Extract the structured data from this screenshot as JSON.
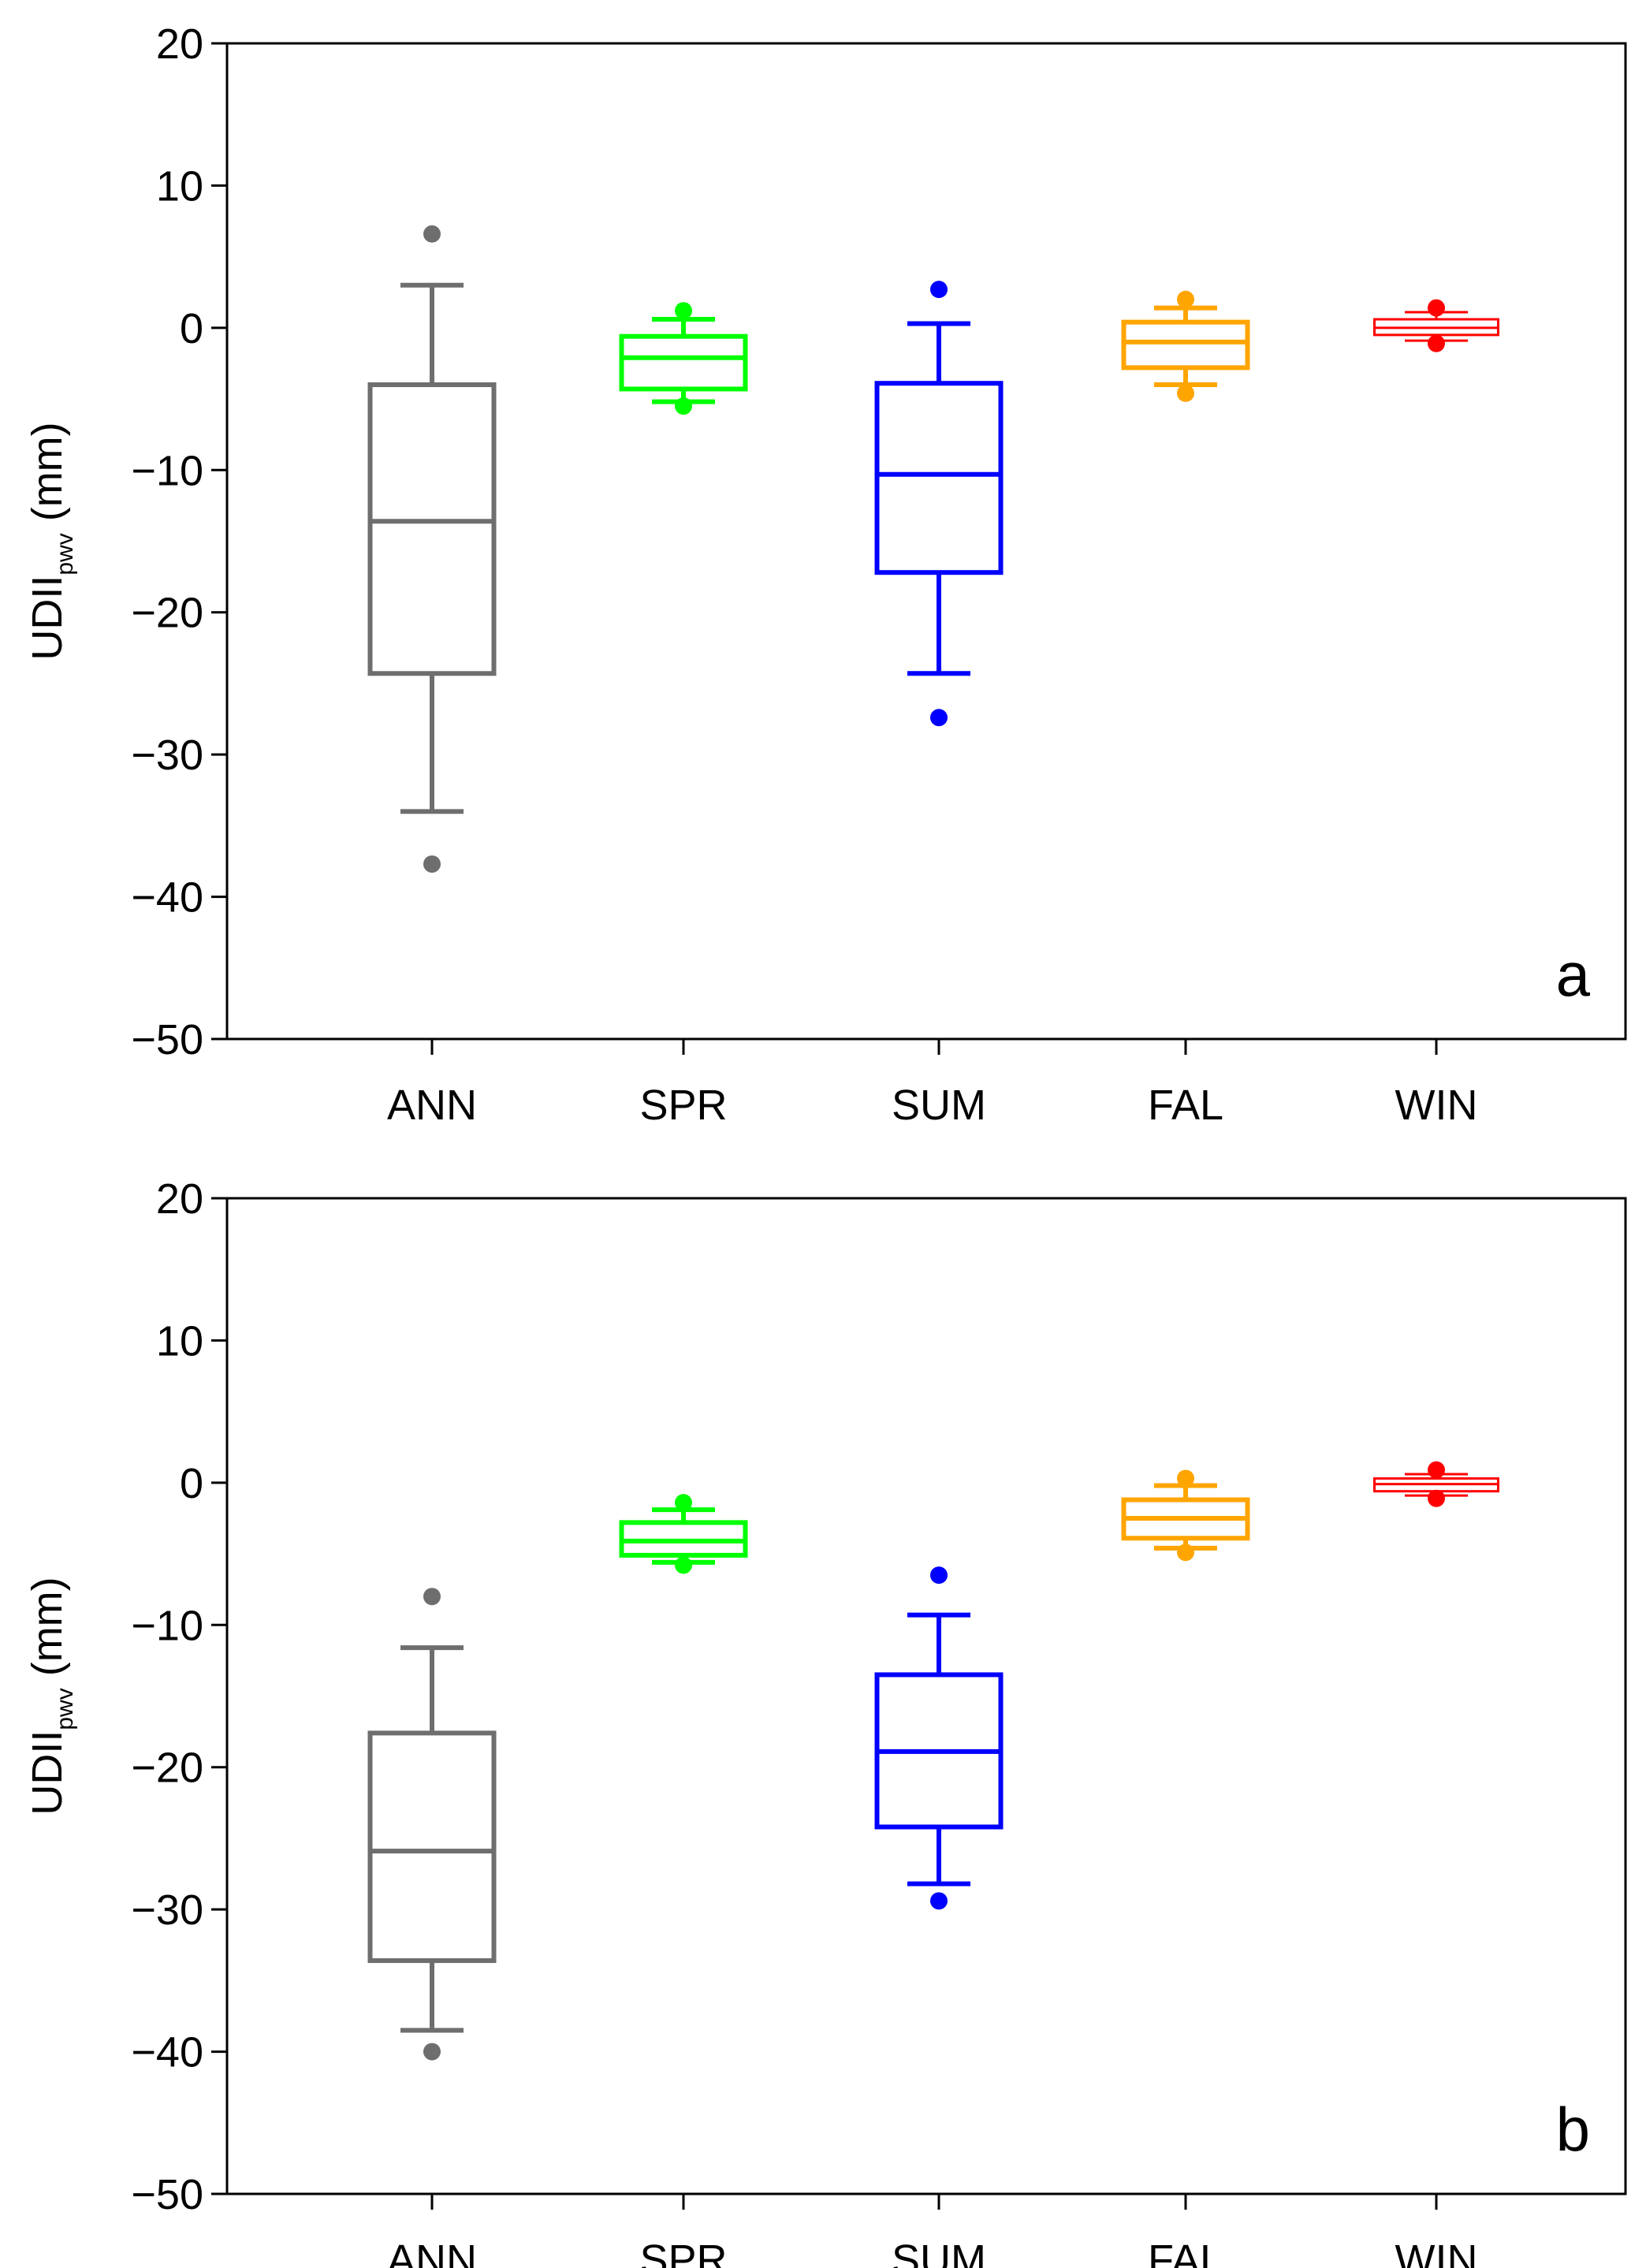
{
  "chart_data": [
    {
      "type": "box",
      "panel_label": "a",
      "ylabel": {
        "main": "UDII",
        "sub": "pwv",
        "unit": " (mm)"
      },
      "ylim": [
        -50,
        20
      ],
      "yticks": [
        20,
        10,
        0,
        -10,
        -20,
        -30,
        -40,
        -50
      ],
      "yticks_display": [
        "20",
        "10",
        "0",
        "−10",
        "−20",
        "−30",
        "−40",
        "−50"
      ],
      "categories": [
        "ANN",
        "SPR",
        "SUM",
        "FAL",
        "WIN"
      ],
      "boxes": [
        {
          "name": "ANN",
          "color": "#6e6e6e",
          "whisker_low": -34,
          "q1": -24.3,
          "median": -13.6,
          "q3": -4,
          "whisker_high": 3,
          "outliers": [
            6.6,
            -37.7
          ]
        },
        {
          "name": "SPR",
          "color": "#00ff00",
          "whisker_low": -5.2,
          "q1": -4.3,
          "median": -2.1,
          "q3": -0.6,
          "whisker_high": 0.6,
          "outliers": [
            1.2,
            -5.5
          ]
        },
        {
          "name": "SUM",
          "color": "#0000ff",
          "whisker_low": -24.3,
          "q1": -17.2,
          "median": -10.3,
          "q3": -3.9,
          "whisker_high": 0.3,
          "outliers": [
            2.7,
            -27.4
          ]
        },
        {
          "name": "FAL",
          "color": "#ffa500",
          "whisker_low": -4,
          "q1": -2.8,
          "median": -1,
          "q3": 0.4,
          "whisker_high": 1.4,
          "outliers": [
            2.0,
            -4.6
          ]
        },
        {
          "name": "WIN",
          "color": "#ff0000",
          "whisker_low": -0.9,
          "q1": -0.5,
          "median": 0,
          "q3": 0.6,
          "whisker_high": 1.1,
          "outliers": [
            1.4,
            -1.1
          ]
        }
      ]
    },
    {
      "type": "box",
      "panel_label": "b",
      "ylabel": {
        "main": "UDII",
        "sub": "pwv",
        "unit": " (mm)"
      },
      "ylim": [
        -50,
        20
      ],
      "yticks": [
        20,
        10,
        0,
        -10,
        -20,
        -30,
        -40,
        -50
      ],
      "yticks_display": [
        "20",
        "10",
        "0",
        "−10",
        "−20",
        "−30",
        "−40",
        "−50"
      ],
      "categories": [
        "ANN",
        "SPR",
        "SUM",
        "FAL",
        "WIN"
      ],
      "boxes": [
        {
          "name": "ANN",
          "color": "#6e6e6e",
          "whisker_low": -38.5,
          "q1": -33.6,
          "median": -25.9,
          "q3": -17.6,
          "whisker_high": -11.6,
          "outliers": [
            -8,
            -40
          ]
        },
        {
          "name": "SPR",
          "color": "#00ff00",
          "whisker_low": -5.6,
          "q1": -5.1,
          "median": -4.1,
          "q3": -2.8,
          "whisker_high": -1.9,
          "outliers": [
            -1.4,
            -5.8
          ]
        },
        {
          "name": "SUM",
          "color": "#0000ff",
          "whisker_low": -28.2,
          "q1": -24.2,
          "median": -18.9,
          "q3": -13.5,
          "whisker_high": -9.3,
          "outliers": [
            -6.5,
            -29.4
          ]
        },
        {
          "name": "FAL",
          "color": "#ffa500",
          "whisker_low": -4.6,
          "q1": -3.9,
          "median": -2.5,
          "q3": -1.2,
          "whisker_high": -0.2,
          "outliers": [
            0.3,
            -4.9
          ]
        },
        {
          "name": "WIN",
          "color": "#ff0000",
          "whisker_low": -0.9,
          "q1": -0.6,
          "median": -0.1,
          "q3": 0.3,
          "whisker_high": 0.6,
          "outliers": [
            0.9,
            -1.1
          ]
        }
      ]
    }
  ]
}
